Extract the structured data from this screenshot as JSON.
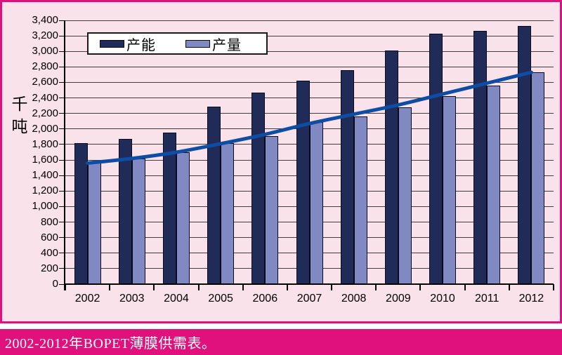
{
  "chart": {
    "y_axis_title": "千吨"
  },
  "caption": {
    "text": "2002-2012年BOPET薄膜供需表。"
  },
  "colors": {
    "panel_background": "#F9E2E9",
    "frame_magenta": "#E0117C",
    "caption_bar_background": "#E0117C",
    "caption_text": "#FFFFFF",
    "capacity_bar": "#212B58",
    "output_bar": "#8189C2",
    "trend_line": "#0E4DA4",
    "gridline": "#3F3F3F"
  },
  "chart_data": {
    "type": "bar",
    "title": "",
    "xlabel": "",
    "ylabel": "千吨",
    "ylim": [
      0,
      3400
    ],
    "ytick_step": 200,
    "grid": true,
    "legend_position": "top-inside",
    "categories": [
      "2002",
      "2003",
      "2004",
      "2005",
      "2006",
      "2007",
      "2008",
      "2009",
      "2010",
      "2011",
      "2012"
    ],
    "series": [
      {
        "name": "产能",
        "type": "bar",
        "color": "#212B58",
        "values": [
          1820,
          1870,
          1950,
          2290,
          2470,
          2620,
          2760,
          3010,
          3230,
          3260,
          3330
        ]
      },
      {
        "name": "产量",
        "type": "bar",
        "color": "#8189C2",
        "values": [
          1560,
          1620,
          1700,
          1820,
          1910,
          2090,
          2160,
          2280,
          2420,
          2560,
          2730
        ]
      },
      {
        "name": "trend-line",
        "type": "line",
        "color": "#0E4DA4",
        "values": [
          1560,
          1620,
          1700,
          1810,
          1930,
          2070,
          2190,
          2310,
          2450,
          2590,
          2730
        ]
      }
    ]
  }
}
